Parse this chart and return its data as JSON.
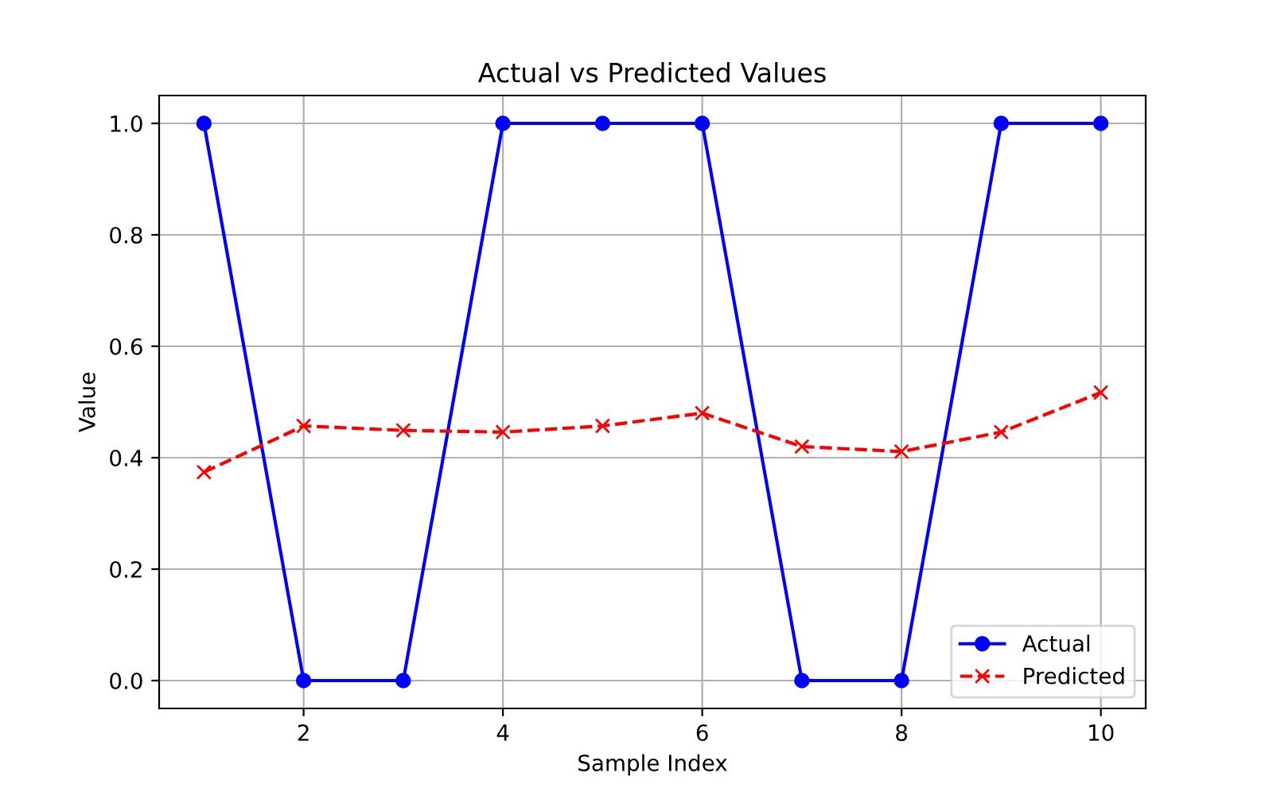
{
  "chart_data": {
    "type": "line",
    "title": "Actual vs Predicted Values",
    "xlabel": "Sample Index",
    "ylabel": "Value",
    "x": [
      1,
      2,
      3,
      4,
      5,
      6,
      7,
      8,
      9,
      10
    ],
    "series": [
      {
        "name": "Actual",
        "color": "#0000ff",
        "marker": "circle",
        "line_style": "solid",
        "values": [
          1,
          0,
          0,
          1,
          1,
          1,
          0,
          0,
          1,
          1
        ]
      },
      {
        "name": "Predicted",
        "color": "#ff0000",
        "marker": "cross",
        "line_style": "dashed",
        "values": [
          0.374,
          0.457,
          0.449,
          0.446,
          0.457,
          0.48,
          0.42,
          0.411,
          0.446,
          0.517
        ]
      }
    ],
    "xlim": [
      0.55,
      10.45
    ],
    "ylim": [
      -0.05,
      1.05
    ],
    "xticks": [
      2,
      4,
      6,
      8,
      10
    ],
    "yticks": [
      {
        "value": 0,
        "label": "0.0"
      },
      {
        "value": 0.2,
        "label": "0.2"
      },
      {
        "value": 0.4,
        "label": "0.4"
      },
      {
        "value": 0.6,
        "label": "0.6"
      },
      {
        "value": 0.8,
        "label": "0.8"
      },
      {
        "value": 1,
        "label": "1.0"
      }
    ],
    "grid": true,
    "legend": "bottom right"
  }
}
